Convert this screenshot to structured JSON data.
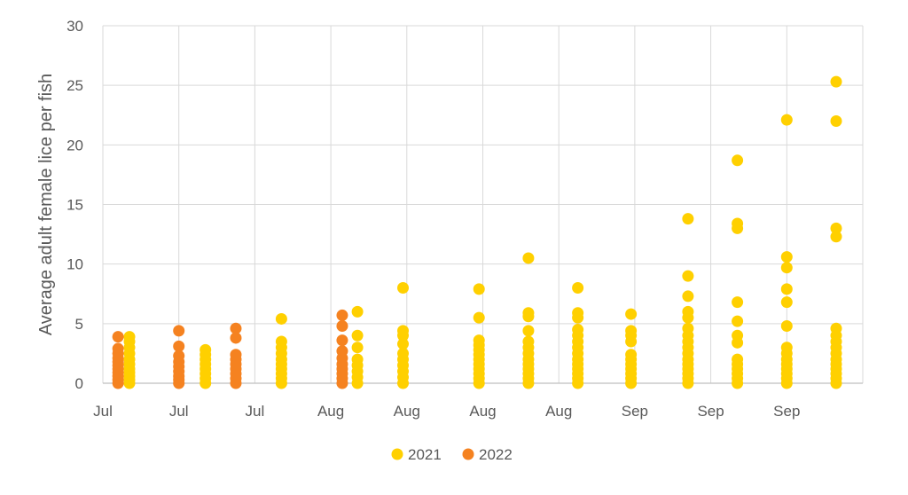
{
  "chart_data": {
    "type": "scatter",
    "title": "",
    "xlabel": "",
    "ylabel": "Average adult female lice per fish",
    "ylim": [
      0,
      30
    ],
    "yticks": [
      0,
      5,
      10,
      15,
      20,
      25,
      30
    ],
    "xtick_labels": [
      "Jul",
      "Jul",
      "Jul",
      "Aug",
      "Aug",
      "Aug",
      "Aug",
      "Sep",
      "Sep",
      "Sep"
    ],
    "grid": true,
    "legend_position": "bottom",
    "series": [
      {
        "name": "2021",
        "color": "#FFD000",
        "groups": [
          {
            "x": 0.35,
            "y": [
              0.0,
              0.3,
              0.6,
              0.9,
              1.2,
              1.6,
              2.0,
              2.5,
              3.0,
              3.5,
              3.9
            ]
          },
          {
            "x": 1.35,
            "y": [
              0.0,
              0.4,
              0.8,
              1.2,
              1.6,
              2.0,
              2.4,
              2.8
            ]
          },
          {
            "x": 2.35,
            "y": [
              0.0,
              0.4,
              0.8,
              1.2,
              1.6,
              2.0,
              2.5,
              3.0,
              3.5,
              5.4
            ]
          },
          {
            "x": 3.35,
            "y": [
              0.0,
              0.5,
              1.0,
              1.5,
              2.0,
              3.0,
              4.0,
              6.0
            ]
          },
          {
            "x": 3.95,
            "y": [
              0.0,
              0.5,
              1.0,
              1.5,
              2.0,
              2.5,
              3.3,
              4.0,
              4.4,
              8.0
            ]
          },
          {
            "x": 4.95,
            "y": [
              0.0,
              0.4,
              0.8,
              1.2,
              1.6,
              2.0,
              2.4,
              2.8,
              3.2,
              3.6,
              5.5,
              7.9
            ]
          },
          {
            "x": 5.6,
            "y": [
              0.0,
              0.4,
              0.8,
              1.2,
              1.6,
              2.0,
              2.5,
              3.0,
              3.5,
              4.4,
              5.6,
              5.9,
              10.5
            ]
          },
          {
            "x": 6.25,
            "y": [
              0.0,
              0.4,
              0.8,
              1.2,
              1.6,
              2.0,
              2.5,
              3.0,
              3.5,
              4.0,
              4.5,
              5.5,
              5.9,
              8.0
            ]
          },
          {
            "x": 6.95,
            "y": [
              0.0,
              0.4,
              0.8,
              1.2,
              1.6,
              2.0,
              2.4,
              3.5,
              4.0,
              4.4,
              5.8
            ]
          },
          {
            "x": 7.7,
            "y": [
              0.0,
              0.4,
              0.8,
              1.2,
              1.6,
              2.0,
              2.5,
              3.0,
              3.5,
              4.0,
              4.6,
              5.5,
              6.0,
              7.3,
              9.0,
              13.8
            ]
          },
          {
            "x": 8.35,
            "y": [
              0.0,
              0.4,
              0.8,
              1.2,
              1.6,
              2.0,
              3.4,
              4.0,
              5.2,
              6.8,
              13.0,
              13.4,
              18.7
            ]
          },
          {
            "x": 9.0,
            "y": [
              0.0,
              0.4,
              0.8,
              1.2,
              1.6,
              2.0,
              2.5,
              3.0,
              4.8,
              6.8,
              7.9,
              9.7,
              10.6,
              22.1
            ]
          },
          {
            "x": 9.65,
            "y": [
              0.0,
              0.4,
              0.8,
              1.2,
              1.6,
              2.0,
              2.5,
              3.0,
              3.5,
              4.0,
              4.6,
              12.3,
              13.0,
              22.0,
              25.3
            ]
          }
        ]
      },
      {
        "name": "2022",
        "color": "#F58220",
        "groups": [
          {
            "x": 0.2,
            "y": [
              0.0,
              0.3,
              0.6,
              0.9,
              1.2,
              1.5,
              1.8,
              2.1,
              2.5,
              2.9,
              3.9
            ]
          },
          {
            "x": 1.0,
            "y": [
              0.0,
              0.3,
              0.6,
              1.0,
              1.4,
              1.8,
              2.3,
              3.1,
              4.4
            ]
          },
          {
            "x": 1.75,
            "y": [
              0.0,
              0.4,
              0.8,
              1.2,
              1.6,
              2.0,
              2.4,
              3.8,
              4.6
            ]
          },
          {
            "x": 3.15,
            "y": [
              0.0,
              0.4,
              0.8,
              1.2,
              1.6,
              2.1,
              2.7,
              3.6,
              4.8,
              5.7
            ]
          }
        ]
      }
    ]
  }
}
